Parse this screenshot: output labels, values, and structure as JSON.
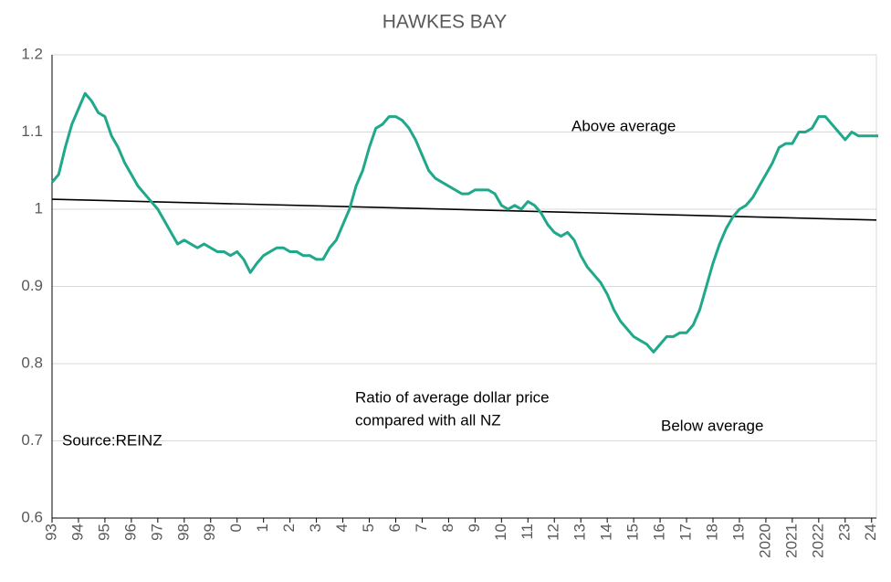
{
  "chart_data": {
    "type": "line",
    "title": "HAWKES BAY",
    "annotations": [
      "Above average",
      "Ratio of average dollar price",
      "compared with all NZ",
      "Below average",
      "Source:REINZ"
    ],
    "categories": [
      "93",
      null,
      null,
      null,
      "94",
      null,
      null,
      null,
      "95",
      null,
      null,
      null,
      "96",
      null,
      null,
      null,
      "97",
      null,
      null,
      null,
      "98",
      null,
      null,
      null,
      "99",
      null,
      null,
      null,
      "0",
      null,
      null,
      null,
      "1",
      null,
      null,
      null,
      "2",
      null,
      null,
      null,
      "3",
      null,
      null,
      null,
      "4",
      null,
      null,
      null,
      "5",
      null,
      null,
      null,
      "6",
      null,
      null,
      null,
      "7",
      null,
      null,
      null,
      "8",
      null,
      null,
      null,
      "9",
      null,
      null,
      null,
      "10",
      null,
      null,
      null,
      "11",
      null,
      null,
      null,
      "12",
      null,
      null,
      null,
      "13",
      null,
      null,
      null,
      "14",
      null,
      null,
      null,
      "15",
      null,
      null,
      null,
      "16",
      null,
      null,
      null,
      "17",
      null,
      null,
      null,
      "18",
      null,
      null,
      null,
      "19",
      null,
      null,
      null,
      "2020",
      null,
      null,
      null,
      "2021",
      null,
      null,
      null,
      "2022",
      null,
      null,
      null,
      "23",
      null,
      null,
      null,
      "24",
      null
    ],
    "series": [
      {
        "color": "#1fa88a",
        "values": [
          1.035,
          1.045,
          1.08,
          1.11,
          1.13,
          1.15,
          1.14,
          1.125,
          1.12,
          1.095,
          1.08,
          1.06,
          1.045,
          1.03,
          1.02,
          1.01,
          1.0,
          0.985,
          0.97,
          0.955,
          0.96,
          0.955,
          0.95,
          0.955,
          0.95,
          0.945,
          0.945,
          0.94,
          0.945,
          0.935,
          0.918,
          0.93,
          0.94,
          0.945,
          0.95,
          0.95,
          0.945,
          0.945,
          0.94,
          0.94,
          0.935,
          0.935,
          0.95,
          0.96,
          0.98,
          1.0,
          1.03,
          1.05,
          1.08,
          1.105,
          1.11,
          1.12,
          1.12,
          1.115,
          1.105,
          1.09,
          1.07,
          1.05,
          1.04,
          1.035,
          1.03,
          1.025,
          1.02,
          1.02,
          1.025,
          1.025,
          1.025,
          1.02,
          1.005,
          1.0,
          1.005,
          1.0,
          1.01,
          1.005,
          0.995,
          0.98,
          0.97,
          0.965,
          0.97,
          0.96,
          0.94,
          0.925,
          0.915,
          0.905,
          0.89,
          0.87,
          0.855,
          0.845,
          0.835,
          0.83,
          0.825,
          0.815,
          0.825,
          0.835,
          0.835,
          0.84,
          0.84,
          0.85,
          0.87,
          0.9,
          0.93,
          0.955,
          0.975,
          0.99,
          1.0,
          1.005,
          1.015,
          1.03,
          1.045,
          1.06,
          1.08,
          1.085,
          1.085,
          1.1,
          1.1,
          1.105,
          1.12,
          1.12,
          1.11,
          1.1,
          1.09,
          1.1,
          1.095,
          1.095,
          1.095,
          1.095
        ]
      }
    ],
    "trend": {
      "color": "#000000",
      "start": 1.013,
      "end": 0.986
    },
    "ylim": [
      0.6,
      1.2
    ],
    "yticks": [
      0.6,
      0.7,
      0.8,
      0.9,
      1,
      1.1,
      1.2
    ],
    "grid": true
  }
}
